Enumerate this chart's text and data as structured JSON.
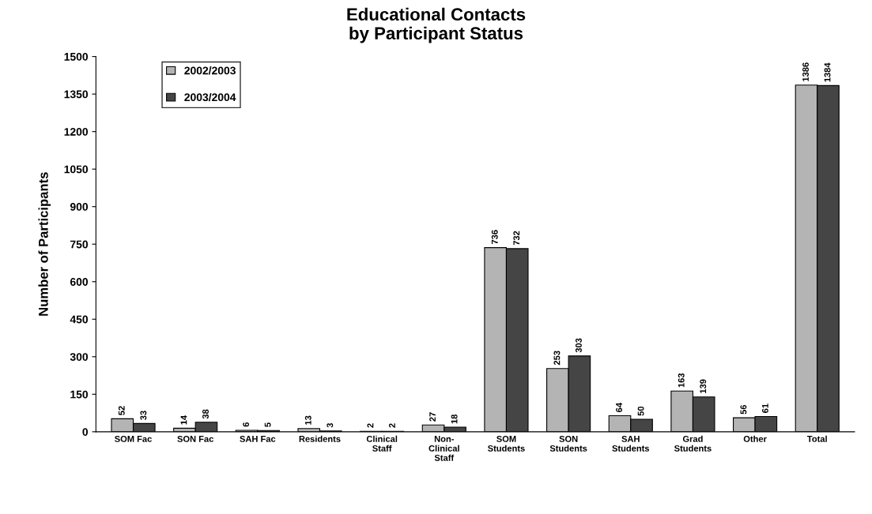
{
  "chart_data": {
    "type": "bar",
    "title": "Educational Contacts\nby Participant Status",
    "ylabel": "Number of Participants",
    "categories": [
      "SOM Fac",
      "SON Fac",
      "SAH Fac",
      "Residents",
      "Clinical\nStaff",
      "Non-\nClinical\nStaff",
      "SOM\nStudents",
      "SON\nStudents",
      "SAH\nStudents",
      "Grad\nStudents",
      "Other",
      "Total"
    ],
    "series": [
      {
        "name": "2002/2003",
        "color": "#b4b4b4",
        "values": [
          52,
          14,
          6,
          13,
          2,
          27,
          736,
          253,
          64,
          163,
          56,
          1386
        ]
      },
      {
        "name": "2003/2004",
        "color": "#454545",
        "values": [
          33,
          38,
          5,
          3,
          2,
          18,
          732,
          303,
          50,
          139,
          61,
          1384
        ]
      }
    ],
    "ylim": [
      0,
      1500
    ],
    "yticks": [
      0,
      150,
      300,
      450,
      600,
      750,
      900,
      1050,
      1200,
      1350,
      1500
    ],
    "data_labels": true,
    "legend": "top left",
    "grid": false
  }
}
